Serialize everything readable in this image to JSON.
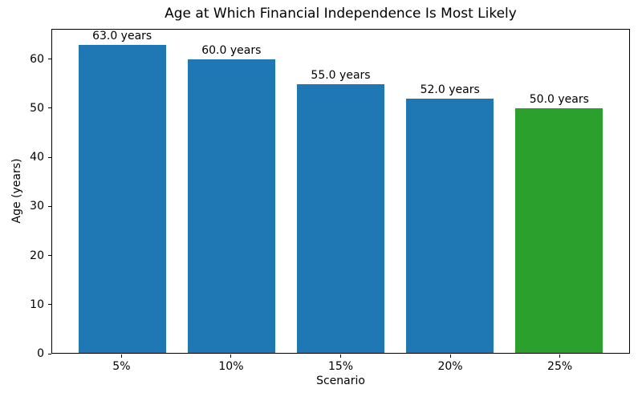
{
  "chart_data": {
    "type": "bar",
    "title": "Age at Which Financial Independence Is Most Likely",
    "xlabel": "Scenario",
    "ylabel": "Age (years)",
    "categories": [
      "5%",
      "10%",
      "15%",
      "20%",
      "25%"
    ],
    "values": [
      63.0,
      60.0,
      55.0,
      52.0,
      50.0
    ],
    "bar_labels": [
      "63.0 years",
      "60.0 years",
      "55.0 years",
      "52.0 years",
      "50.0 years"
    ],
    "bar_colors": [
      "#1f77b4",
      "#1f77b4",
      "#1f77b4",
      "#1f77b4",
      "#2ca02c"
    ],
    "ylim": [
      0,
      66.15
    ],
    "yticks": [
      0,
      10,
      20,
      30,
      40,
      50,
      60
    ],
    "grid": false,
    "legend_position": "none",
    "bar_width_fraction": 0.8,
    "axis_color": "#000000",
    "background_color": "#ffffff"
  }
}
